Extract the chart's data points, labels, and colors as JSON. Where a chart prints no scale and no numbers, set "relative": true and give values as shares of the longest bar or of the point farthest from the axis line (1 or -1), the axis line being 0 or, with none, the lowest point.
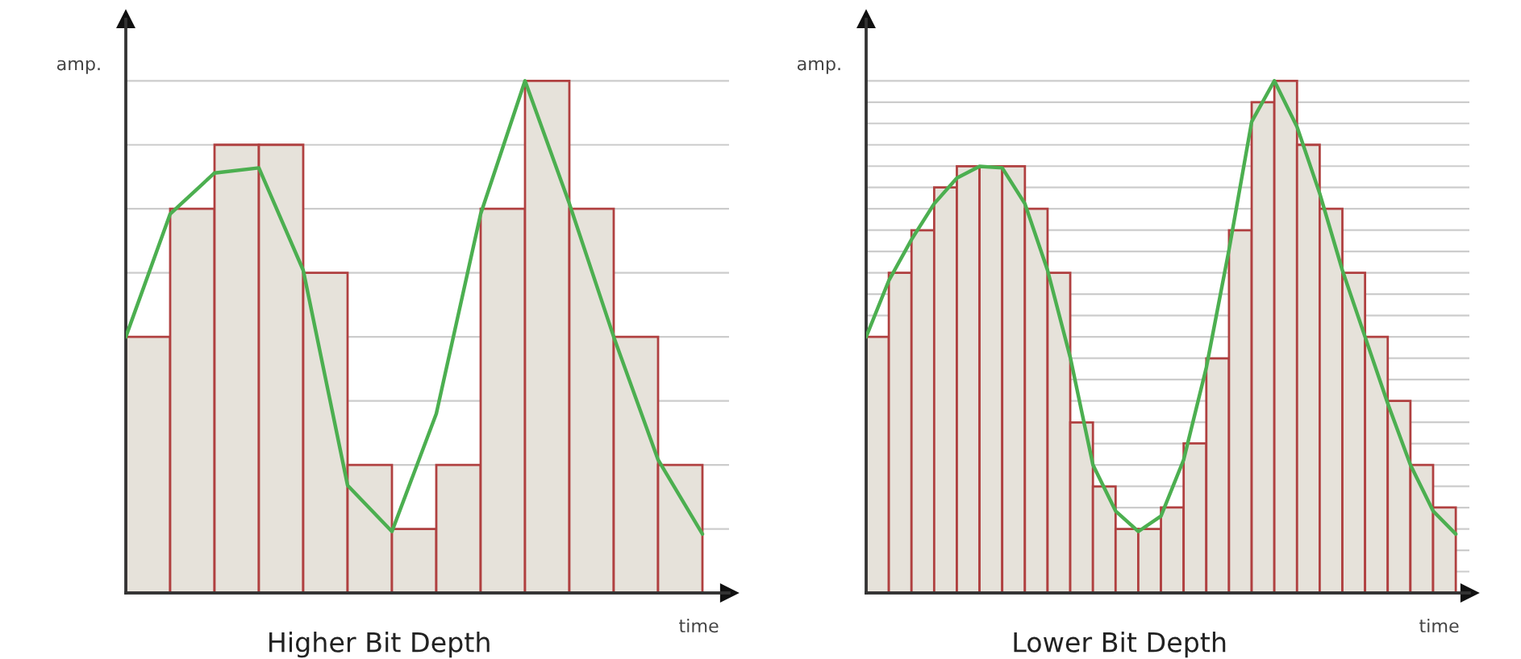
{
  "chart_data": [
    {
      "type": "bar",
      "title": "Higher Bit Depth",
      "xlabel": "time",
      "ylabel": "amp.",
      "relative": true,
      "grid": "y",
      "categories": [
        null,
        null,
        null,
        null,
        null,
        null,
        null,
        null,
        null,
        null,
        null,
        null,
        null
      ],
      "series": [
        {
          "color": "#e6e2da",
          "values": [
            0.5,
            0.75,
            0.875,
            0.875,
            0.625,
            0.25,
            0.125,
            0.25,
            0.75,
            1,
            0.75,
            0.5,
            0.25
          ]
        }
      ]
    },
    {
      "type": "line",
      "relative": true,
      "categories": [
        null,
        null,
        null,
        null,
        null,
        null,
        null,
        null,
        null,
        null,
        null,
        null,
        null,
        null
      ],
      "series": [
        {
          "color": "#4caf50",
          "values": [
            0.5,
            0.74,
            0.82,
            0.83,
            0.63,
            0.21,
            0.12,
            0.35,
            0.74,
            1,
            0.76,
            0.5,
            0.26,
            0.115
          ]
        }
      ]
    },
    {
      "type": "bar",
      "title": "Lower Bit Depth",
      "xlabel": "time",
      "ylabel": "amp.",
      "relative": true,
      "grid": "y",
      "categories": [
        null,
        null,
        null,
        null,
        null,
        null,
        null,
        null,
        null,
        null,
        null,
        null,
        null,
        null,
        null,
        null,
        null,
        null,
        null,
        null,
        null,
        null,
        null,
        null,
        null,
        null
      ],
      "series": [
        {
          "color": "#e6e2da",
          "values": [
            0.5,
            0.625,
            0.708,
            0.792,
            0.833,
            0.833,
            0.833,
            0.75,
            0.625,
            0.333,
            0.208,
            0.125,
            0.125,
            0.167,
            0.292,
            0.458,
            0.708,
            0.958,
            1,
            0.875,
            0.75,
            0.625,
            0.5,
            0.375,
            0.25,
            0.167
          ]
        }
      ]
    },
    {
      "type": "line",
      "relative": true,
      "categories": [
        null,
        null,
        null,
        null,
        null,
        null,
        null,
        null,
        null,
        null,
        null,
        null,
        null,
        null,
        null,
        null,
        null,
        null,
        null,
        null,
        null,
        null,
        null,
        null,
        null,
        null,
        null
      ],
      "series": [
        {
          "color": "#4caf50",
          "values": [
            0.5,
            0.61,
            0.69,
            0.76,
            0.81,
            0.833,
            0.83,
            0.76,
            0.63,
            0.46,
            0.25,
            0.16,
            0.12,
            0.15,
            0.26,
            0.44,
            0.67,
            0.92,
            1,
            0.91,
            0.78,
            0.63,
            0.5,
            0.37,
            0.25,
            0.16,
            0.115
          ]
        }
      ]
    }
  ]
}
